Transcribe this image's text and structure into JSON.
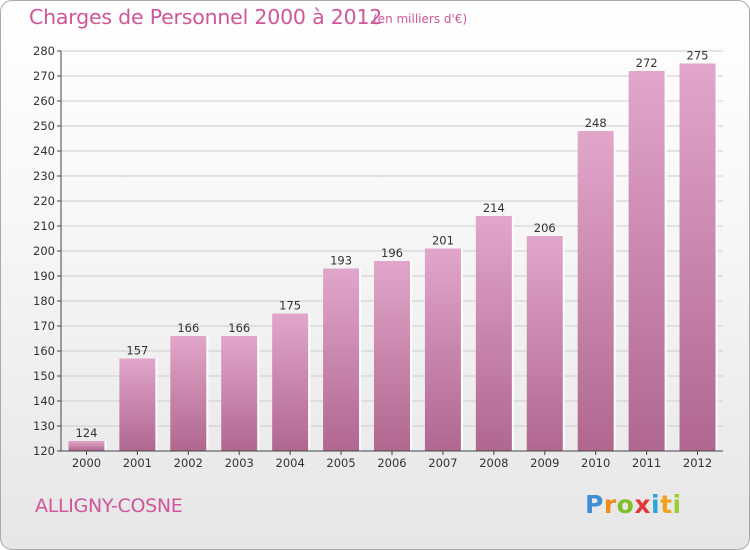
{
  "title": "Charges de Personnel 2000 à 2012",
  "subtitle": "(en milliers d'€)",
  "commune": "ALLIGNY-COSNE",
  "brand": {
    "letters": [
      "P",
      "r",
      "o",
      "x",
      "i",
      "t",
      "i"
    ],
    "colors": [
      "#3d8fd6",
      "#f08a1c",
      "#7fbf2a",
      "#e23a3a",
      "#2aa7d8",
      "#f0a21c",
      "#9acd32"
    ]
  },
  "colors": {
    "text": "#d0559a",
    "bar_top": "#e2a6cb",
    "bar_bottom": "#b0678f",
    "grid": "#cccccc",
    "axis": "#444444"
  },
  "chart_data": {
    "type": "bar",
    "categories": [
      "2000",
      "2001",
      "2002",
      "2003",
      "2004",
      "2005",
      "2006",
      "2007",
      "2008",
      "2009",
      "2010",
      "2011",
      "2012"
    ],
    "values": [
      124,
      157,
      166,
      166,
      175,
      193,
      196,
      201,
      214,
      206,
      248,
      272,
      275
    ],
    "ylim": [
      120,
      280
    ],
    "yticks": [
      120,
      130,
      140,
      150,
      160,
      170,
      180,
      190,
      200,
      210,
      220,
      230,
      240,
      250,
      260,
      270,
      280
    ],
    "grid": true,
    "data_labels": true,
    "title": "Charges de Personnel 2000 à 2012",
    "subtitle": "(en milliers d'€)"
  }
}
